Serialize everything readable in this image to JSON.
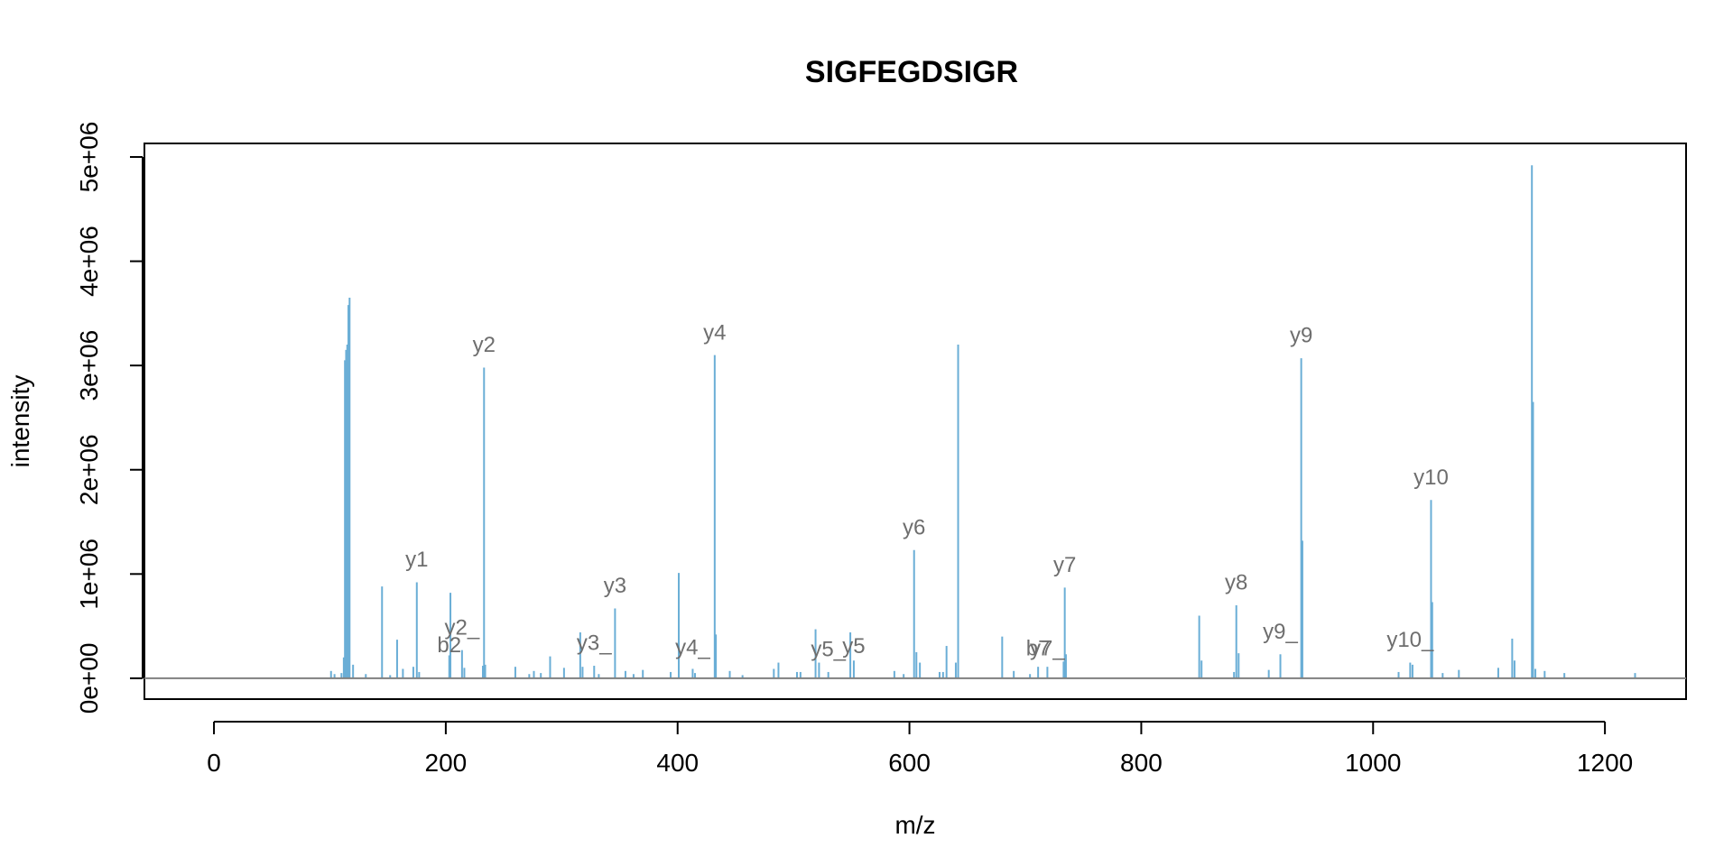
{
  "chart_data": {
    "type": "bar",
    "title": "SIGFEGDSIGR",
    "xlabel": "m/z",
    "ylabel": "intensity",
    "xlim": [
      -60,
      1270
    ],
    "ylim": [
      -200000,
      5130000
    ],
    "xticks": [
      0,
      200,
      400,
      600,
      800,
      1000,
      1200
    ],
    "xtick_labels": [
      "0",
      "200",
      "400",
      "600",
      "800",
      "1000",
      "1200"
    ],
    "yticks": [
      0,
      1000000,
      2000000,
      3000000,
      4000000,
      5000000
    ],
    "ytick_labels": [
      "0e+00",
      "1e+06",
      "2e+06",
      "3e+06",
      "4e+06",
      "5e+06"
    ],
    "grid": false,
    "peak_color": "#6aaed6",
    "baseline_color": "#808080",
    "label_color": "#6e6e6e",
    "peaks": [
      [
        101,
        70000
      ],
      [
        104,
        40000
      ],
      [
        110,
        50000
      ],
      [
        112,
        200000
      ],
      [
        113,
        3050000
      ],
      [
        114,
        3150000
      ],
      [
        115,
        3200000
      ],
      [
        116,
        3580000
      ],
      [
        117,
        3650000
      ],
      [
        120,
        130000
      ],
      [
        131,
        40000
      ],
      [
        145,
        880000
      ],
      [
        152,
        30000
      ],
      [
        158,
        370000
      ],
      [
        163,
        90000
      ],
      [
        172,
        110000
      ],
      [
        175,
        920000
      ],
      [
        177,
        60000
      ],
      [
        203,
        220000
      ],
      [
        204,
        820000
      ],
      [
        214,
        270000
      ],
      [
        216,
        100000
      ],
      [
        232,
        120000
      ],
      [
        233,
        2980000
      ],
      [
        234,
        130000
      ],
      [
        260,
        110000
      ],
      [
        272,
        40000
      ],
      [
        276,
        70000
      ],
      [
        282,
        50000
      ],
      [
        290,
        210000
      ],
      [
        302,
        100000
      ],
      [
        316,
        440000
      ],
      [
        318,
        110000
      ],
      [
        328,
        120000
      ],
      [
        332,
        40000
      ],
      [
        346,
        670000
      ],
      [
        355,
        70000
      ],
      [
        362,
        40000
      ],
      [
        370,
        80000
      ],
      [
        394,
        60000
      ],
      [
        401,
        1010000
      ],
      [
        413,
        90000
      ],
      [
        415,
        50000
      ],
      [
        432,
        3100000
      ],
      [
        433,
        420000
      ],
      [
        445,
        70000
      ],
      [
        456,
        30000
      ],
      [
        483,
        90000
      ],
      [
        487,
        150000
      ],
      [
        503,
        60000
      ],
      [
        506,
        60000
      ],
      [
        519,
        470000
      ],
      [
        522,
        150000
      ],
      [
        530,
        60000
      ],
      [
        549,
        440000
      ],
      [
        552,
        170000
      ],
      [
        587,
        70000
      ],
      [
        595,
        40000
      ],
      [
        604,
        1230000
      ],
      [
        606,
        250000
      ],
      [
        609,
        150000
      ],
      [
        626,
        60000
      ],
      [
        629,
        60000
      ],
      [
        632,
        310000
      ],
      [
        640,
        150000
      ],
      [
        642,
        3200000
      ],
      [
        680,
        400000
      ],
      [
        690,
        70000
      ],
      [
        704,
        40000
      ],
      [
        711,
        110000
      ],
      [
        719,
        110000
      ],
      [
        733,
        160000
      ],
      [
        734,
        870000
      ],
      [
        735,
        230000
      ],
      [
        850,
        600000
      ],
      [
        852,
        170000
      ],
      [
        880,
        60000
      ],
      [
        882,
        700000
      ],
      [
        884,
        240000
      ],
      [
        910,
        80000
      ],
      [
        920,
        230000
      ],
      [
        938,
        3070000
      ],
      [
        939,
        1320000
      ],
      [
        1022,
        60000
      ],
      [
        1032,
        150000
      ],
      [
        1034,
        130000
      ],
      [
        1050,
        1710000
      ],
      [
        1051,
        730000
      ],
      [
        1060,
        50000
      ],
      [
        1074,
        80000
      ],
      [
        1108,
        100000
      ],
      [
        1120,
        380000
      ],
      [
        1122,
        170000
      ],
      [
        1137,
        4920000
      ],
      [
        1138,
        2650000
      ],
      [
        1140,
        90000
      ],
      [
        1148,
        70000
      ],
      [
        1165,
        50000
      ],
      [
        1226,
        50000
      ]
    ],
    "annotations": [
      {
        "text": "y1",
        "x": 175,
        "y": 1070000
      },
      {
        "text": "y2",
        "x": 233,
        "y": 3130000
      },
      {
        "text": "y2_",
        "x": 214,
        "y": 420000
      },
      {
        "text": "b2",
        "x": 203,
        "y": 250000
      },
      {
        "text": "y3",
        "x": 346,
        "y": 820000
      },
      {
        "text": "y3_",
        "x": 328,
        "y": 270000
      },
      {
        "text": "y4",
        "x": 432,
        "y": 3250000
      },
      {
        "text": "y4_",
        "x": 413,
        "y": 230000
      },
      {
        "text": "y5",
        "x": 552,
        "y": 240000
      },
      {
        "text": "y5_",
        "x": 530,
        "y": 210000
      },
      {
        "text": "y6",
        "x": 604,
        "y": 1380000
      },
      {
        "text": "y7",
        "x": 734,
        "y": 1020000
      },
      {
        "text": "b7",
        "x": 711,
        "y": 220000
      },
      {
        "text": "y7_",
        "x": 719,
        "y": 220000
      },
      {
        "text": "y8",
        "x": 882,
        "y": 850000
      },
      {
        "text": "y9",
        "x": 938,
        "y": 3220000
      },
      {
        "text": "y9_",
        "x": 920,
        "y": 380000
      },
      {
        "text": "y10",
        "x": 1050,
        "y": 1860000
      },
      {
        "text": "y10_",
        "x": 1032,
        "y": 300000
      }
    ]
  }
}
